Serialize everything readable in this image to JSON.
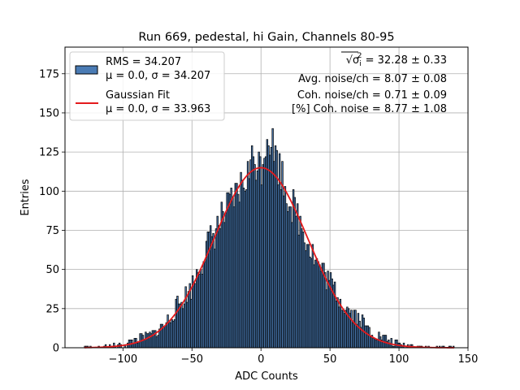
{
  "chart_data": {
    "type": "bar",
    "title": "Run 669, pedestal, hi Gain, Channels 80-95",
    "xlabel": "ADC Counts",
    "ylabel": "Entries",
    "xlim": [
      -142,
      150
    ],
    "ylim": [
      0,
      192
    ],
    "xticks": [
      -100,
      -50,
      0,
      50,
      100,
      150
    ],
    "yticks": [
      0,
      25,
      50,
      75,
      100,
      125,
      150,
      175
    ],
    "grid": true,
    "bin_width": 1,
    "bin_range": [
      -128,
      140
    ],
    "legend_position": "top-left",
    "colors": {
      "bars": "#4a7bb4",
      "bar_edge": "#000000",
      "fit": "#e41a1c"
    },
    "series": [
      {
        "name": "RMS = 34.207",
        "name_line2": "μ = 0.0, σ = 34.207",
        "kind": "histogram",
        "mean": 0.0,
        "sigma": 34.207,
        "amplitude": 116,
        "x": [
          -100,
          -90,
          -80,
          -70,
          -60,
          -50,
          -40,
          -30,
          -20,
          -10,
          -5,
          0,
          5,
          10,
          20,
          30,
          40,
          50,
          60,
          70,
          80,
          90,
          100
        ],
        "values": [
          1.4,
          5.5,
          7.7,
          14,
          27,
          39,
          63,
          80,
          93,
          110,
          122,
          115,
          140,
          125,
          96,
          77,
          55,
          42,
          27,
          20,
          10,
          5.5,
          1.8
        ]
      },
      {
        "name": "Gaussian Fit",
        "name_line2": "μ = 0.0, σ = 33.963",
        "kind": "line",
        "mean": 0.0,
        "sigma": 33.963,
        "amplitude": 115,
        "x": [
          -120,
          -100,
          -80,
          -60,
          -40,
          -20,
          0,
          20,
          40,
          60,
          80,
          100,
          120,
          138
        ],
        "values": [
          0.2,
          1.5,
          7.3,
          24.2,
          57.3,
          96.7,
          115,
          96.7,
          57.3,
          24.2,
          7.3,
          1.5,
          0.2,
          0.0
        ]
      }
    ],
    "annotations": [
      {
        "lhs": "√σ",
        "sub": "i",
        "sup": "2",
        "rhs": " = 32.28 ± 0.33"
      },
      {
        "text": "Avg. noise/ch = 8.07 ± 0.08"
      },
      {
        "text": "Coh. noise/ch = 0.71 ± 0.09"
      },
      {
        "text": "[%] Coh. noise = 8.77 ± 1.08"
      }
    ]
  }
}
